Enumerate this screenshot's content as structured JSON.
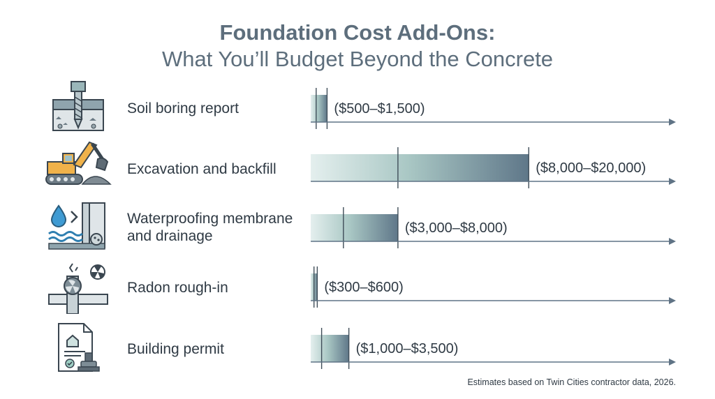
{
  "title": {
    "line1": "Foundation Cost Add-Ons:",
    "line2": "What You’ll Budget Beyond the Concrete"
  },
  "footnote": "Estimates based on Twin Cities contractor data, 2026.",
  "colors": {
    "bar_light": "#e4efee",
    "bar_mid": "#a9c7c4",
    "bar_dark": "#5f7789",
    "axis": "#5f7385",
    "text": "#2f3a44",
    "title": "#5d6e7c"
  },
  "chart_data": {
    "type": "bar",
    "orientation": "horizontal",
    "value_type": "range",
    "unit": "USD",
    "xlim": [
      0,
      33500
    ],
    "grid": false,
    "legend": "none",
    "categories": [
      "Soil boring report",
      "Excavation and backfill",
      "Waterproofing membrane and drainage",
      "Radon rough-in",
      "Building permit"
    ],
    "ranges": [
      {
        "low": 500,
        "high": 1500,
        "label": "($500–$1,500)"
      },
      {
        "low": 8000,
        "high": 20000,
        "label": "($8,000–$20,000)"
      },
      {
        "low": 3000,
        "high": 8000,
        "label": "($3,000–$8,000)"
      },
      {
        "low": 300,
        "high": 600,
        "label": "($300–$600)"
      },
      {
        "low": 1000,
        "high": 3500,
        "label": "($1,000–$3,500)"
      }
    ]
  },
  "rows": [
    {
      "label": "Soil boring report",
      "icon": "soil-boring-drill-icon"
    },
    {
      "label": "Excavation and backfill",
      "icon": "excavator-icon"
    },
    {
      "label": "Waterproofing membrane\nand drainage",
      "icon": "waterproofing-drainage-icon"
    },
    {
      "label": "Radon rough-in",
      "icon": "radon-fan-icon"
    },
    {
      "label": "Building permit",
      "icon": "permit-document-stamp-icon"
    }
  ]
}
